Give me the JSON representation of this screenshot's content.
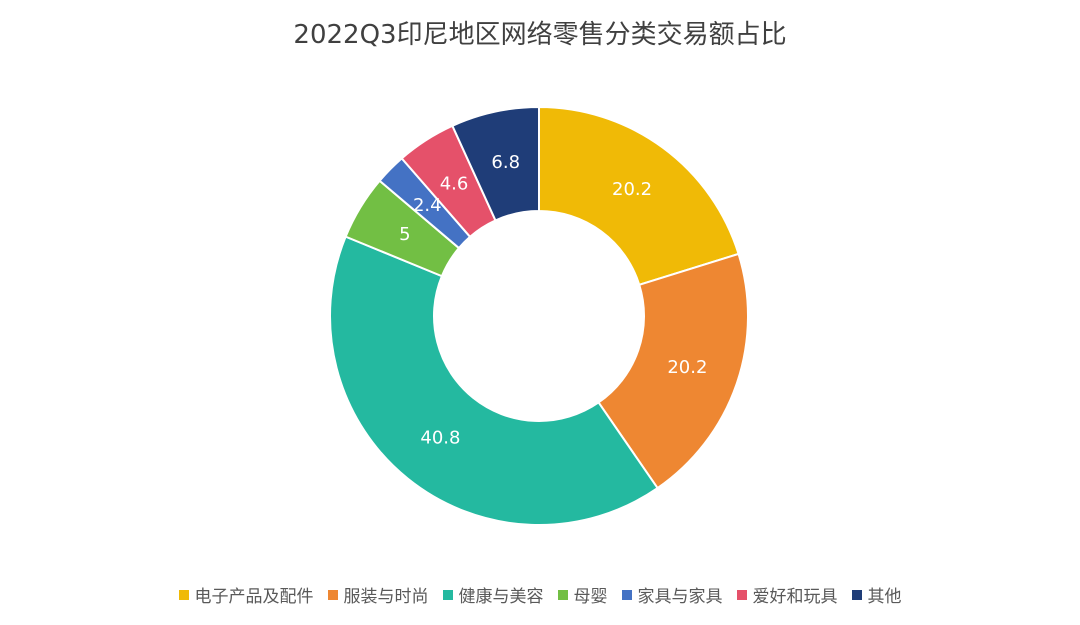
{
  "chart_data": {
    "type": "pie",
    "title": "2022Q3印尼地区网络零售分类交易额占比",
    "categories": [
      "电子产品及配件",
      "服装与时尚",
      "健康与美容",
      "母婴",
      "家具与家具",
      "爱好和玩具",
      "其他"
    ],
    "values": [
      20.2,
      20.2,
      40.8,
      5,
      2.4,
      4.6,
      6.8
    ],
    "colors": [
      "#F0BA06",
      "#EE8732",
      "#24B9A0",
      "#72BF44",
      "#4472C4",
      "#E5516A",
      "#1F3D78"
    ],
    "labels": [
      "20.2",
      "20.2",
      "40.8",
      "5",
      "2.4",
      "4.6",
      "6.8"
    ],
    "donut": true,
    "legend_position": "bottom"
  }
}
